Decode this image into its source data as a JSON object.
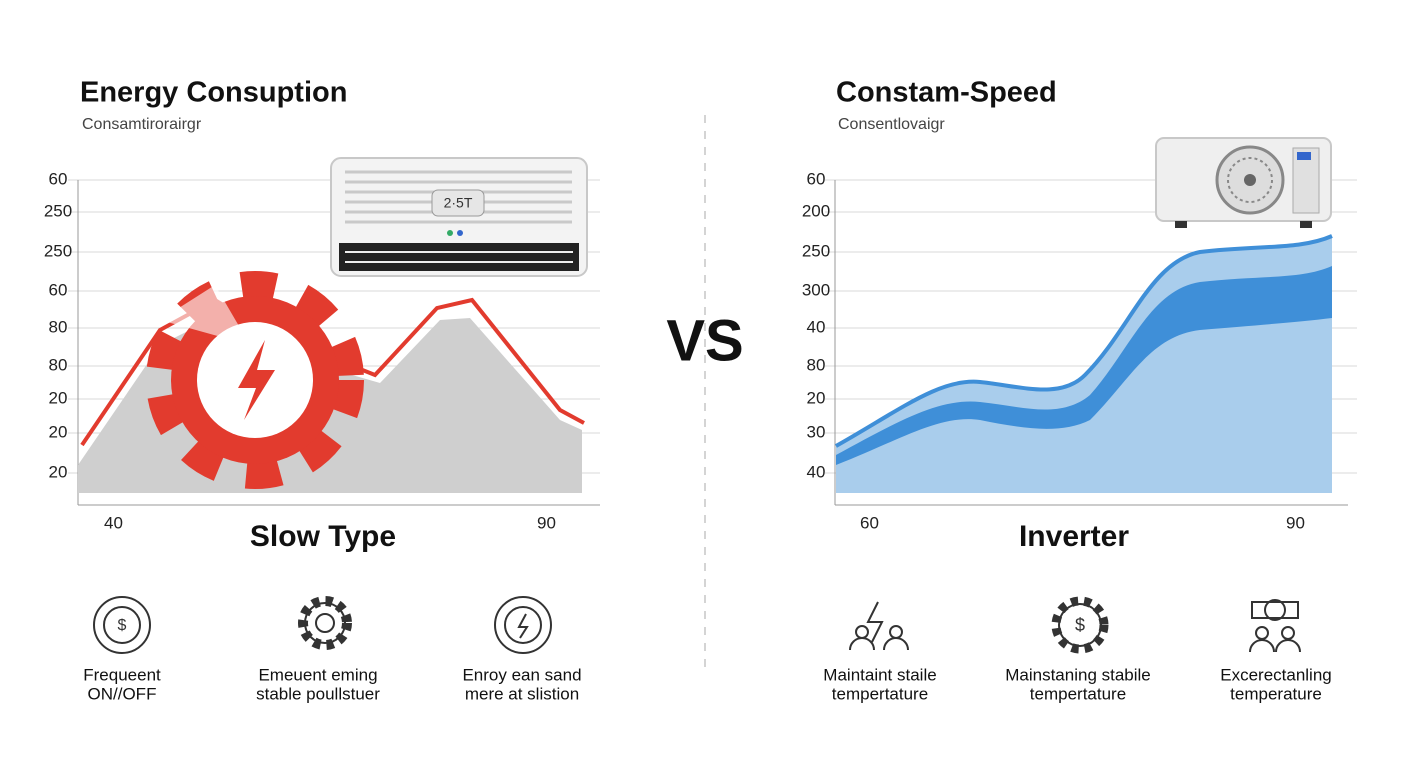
{
  "left": {
    "title": "Energy Consuption",
    "subtitle": "Consamtirorairgr",
    "y_labels": [
      "60",
      "250",
      "250",
      "60",
      "80",
      "80",
      "20",
      "20",
      "20"
    ],
    "x_labels": [
      "40",
      "90"
    ],
    "display": "2·5T",
    "label": "Slow Type",
    "features": [
      [
        "Frequeent",
        "ON//OFF"
      ],
      [
        "Emeuent eming",
        "stable poullstuer"
      ],
      [
        "Enroy ean sand",
        "mere at slistion"
      ]
    ]
  },
  "vs": "VS",
  "right": {
    "title": "Constam-Speed",
    "subtitle": "Consentlovaigr",
    "y_labels": [
      "60",
      "200",
      "250",
      "300",
      "40",
      "80",
      "20",
      "30",
      "40"
    ],
    "x_labels": [
      "60",
      "90"
    ],
    "label": "Inverter",
    "features": [
      [
        "Maintaint staile",
        "tempertature"
      ],
      [
        "Mainstaning stabile",
        "tempertature"
      ],
      [
        "Excerectanling",
        "temperature"
      ]
    ]
  }
}
